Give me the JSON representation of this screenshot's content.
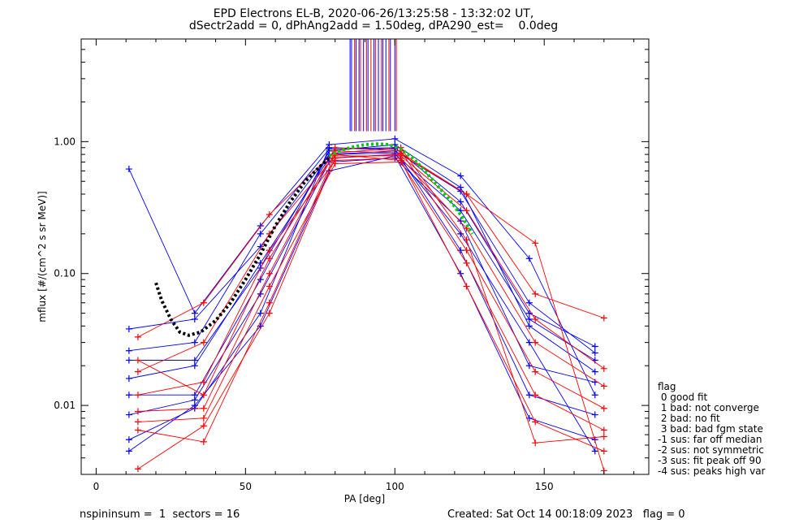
{
  "chart_data": {
    "type": "line",
    "title": "EPD Electrons EL-B, 2020-06-26/13:25:58 - 13:32:02 UT,",
    "subtitle": "dSectr2add = 0, dPhAng2add = 1.50deg, dPA290_est=    0.0deg",
    "xlabel": "PA [deg]",
    "ylabel": "mflux [#/(cm^2 s sr MeV)]",
    "xlim": [
      -5,
      185
    ],
    "ylim": [
      0.003,
      6
    ],
    "yscale": "log",
    "x_ticks": [
      0,
      50,
      100,
      150
    ],
    "x_tick_labels": [
      "0",
      "50",
      "100",
      "150"
    ],
    "y_ticks": [
      0.01,
      0.1,
      1.0
    ],
    "y_tick_labels": [
      "0.01",
      "0.10",
      "1.00"
    ],
    "series_colors": [
      "#0000ff",
      "#ff0000"
    ],
    "marker": "plus",
    "series": [
      {
        "color": "#0000ff",
        "x": [
          11,
          33,
          55,
          78,
          100,
          122,
          145,
          167
        ],
        "y": [
          0.038,
          0.045,
          0.16,
          0.8,
          0.85,
          0.42,
          0.06,
          0.025
        ]
      },
      {
        "color": "#0000ff",
        "x": [
          11,
          33,
          55,
          78,
          100,
          122,
          145,
          167
        ],
        "y": [
          0.026,
          0.03,
          0.2,
          0.88,
          0.9,
          0.35,
          0.05,
          0.028
        ]
      },
      {
        "color": "#0000ff",
        "x": [
          11,
          33,
          55,
          78,
          100,
          122,
          145,
          167
        ],
        "y": [
          0.016,
          0.02,
          0.12,
          0.75,
          0.8,
          0.3,
          0.045,
          0.022
        ]
      },
      {
        "color": "#0000ff",
        "x": [
          11,
          33,
          55,
          78,
          100,
          122,
          145,
          167
        ],
        "y": [
          0.012,
          0.012,
          0.09,
          0.85,
          0.95,
          0.45,
          0.04,
          0.018
        ]
      },
      {
        "color": "#0000ff",
        "x": [
          11,
          33,
          55,
          78,
          100,
          122,
          145,
          167
        ],
        "y": [
          0.0085,
          0.011,
          0.07,
          0.7,
          0.75,
          0.25,
          0.02,
          0.015
        ]
      },
      {
        "color": "#0000ff",
        "x": [
          11,
          33,
          55,
          78,
          100,
          122,
          145,
          167
        ],
        "y": [
          0.0055,
          0.0095,
          0.05,
          0.9,
          0.88,
          0.15,
          0.012,
          0.0085
        ]
      },
      {
        "color": "#0000ff",
        "x": [
          11,
          33,
          55,
          78,
          100,
          122,
          145,
          167
        ],
        "y": [
          0.0045,
          0.01,
          0.04,
          0.6,
          0.78,
          0.1,
          0.008,
          0.0055
        ]
      },
      {
        "color": "#0000ff",
        "x": [
          11,
          33,
          55,
          78,
          100,
          122,
          145,
          167
        ],
        "y": [
          0.62,
          0.05,
          0.23,
          0.95,
          1.05,
          0.55,
          0.13,
          0.012
        ]
      },
      {
        "color": "#0000ff",
        "x": [
          11,
          33,
          55,
          78,
          100,
          122,
          145,
          167
        ],
        "y": [
          0.022,
          0.022,
          0.11,
          0.8,
          0.82,
          0.2,
          0.03,
          0.0045
        ]
      },
      {
        "color": "#ff0000",
        "x": [
          14,
          36,
          58,
          80,
          102,
          124,
          147,
          170
        ],
        "y": [
          0.033,
          0.06,
          0.28,
          0.85,
          0.82,
          0.4,
          0.07,
          0.046
        ]
      },
      {
        "color": "#ff0000",
        "x": [
          14,
          36,
          58,
          80,
          102,
          124,
          147,
          170
        ],
        "y": [
          0.018,
          0.03,
          0.2,
          0.78,
          0.78,
          0.3,
          0.045,
          0.019
        ]
      },
      {
        "color": "#ff0000",
        "x": [
          14,
          36,
          58,
          80,
          102,
          124,
          147,
          170
        ],
        "y": [
          0.012,
          0.015,
          0.15,
          0.72,
          0.75,
          0.22,
          0.03,
          0.014
        ]
      },
      {
        "color": "#ff0000",
        "x": [
          14,
          36,
          58,
          80,
          102,
          124,
          147,
          170
        ],
        "y": [
          0.009,
          0.0095,
          0.1,
          0.9,
          0.85,
          0.15,
          0.018,
          0.0095
        ]
      },
      {
        "color": "#ff0000",
        "x": [
          14,
          36,
          58,
          80,
          102,
          124,
          147,
          170
        ],
        "y": [
          0.0075,
          0.008,
          0.08,
          0.68,
          0.7,
          0.12,
          0.012,
          0.0065
        ]
      },
      {
        "color": "#ff0000",
        "x": [
          14,
          36,
          58,
          80,
          102,
          124,
          147,
          170
        ],
        "y": [
          0.0065,
          0.0053,
          0.06,
          0.8,
          0.72,
          0.08,
          0.0075,
          0.0045
        ]
      },
      {
        "color": "#ff0000",
        "x": [
          14,
          36,
          58,
          80,
          102,
          124,
          147,
          170
        ],
        "y": [
          0.0033,
          0.007,
          0.05,
          0.75,
          0.8,
          0.4,
          0.17,
          0.0032
        ]
      },
      {
        "color": "#ff0000",
        "x": [
          14,
          36,
          58,
          80,
          102,
          124,
          147,
          170
        ],
        "y": [
          0.022,
          0.012,
          0.13,
          0.82,
          0.9,
          0.18,
          0.0052,
          0.0058
        ]
      }
    ],
    "fit_curves": [
      {
        "color": "#000000",
        "style": "dotted-thick",
        "x": [
          20,
          22,
          25,
          28,
          31,
          35,
          40,
          45,
          50,
          55,
          60,
          65,
          70,
          75,
          78
        ],
        "y": [
          0.085,
          0.062,
          0.045,
          0.036,
          0.034,
          0.036,
          0.044,
          0.06,
          0.09,
          0.14,
          0.23,
          0.35,
          0.5,
          0.65,
          0.75
        ]
      },
      {
        "color": "#00cc00",
        "style": "dotted-thick",
        "x": [
          78,
          82,
          86,
          90,
          94,
          98,
          102,
          106,
          110,
          114,
          118,
          122,
          126
        ],
        "y": [
          0.78,
          0.86,
          0.91,
          0.95,
          0.96,
          0.95,
          0.88,
          0.75,
          0.6,
          0.47,
          0.37,
          0.28,
          0.2
        ]
      }
    ],
    "vertical_marks": {
      "ymin": 1.2,
      "x": [
        85,
        85.5,
        86.5,
        87,
        88,
        88.5,
        89.5,
        90.5,
        91,
        92,
        93,
        93.5,
        94.5,
        95.5,
        96,
        97,
        98,
        98.5,
        100,
        100.5
      ],
      "colors": [
        "#0000ff",
        "#0000ff",
        "#ff0000",
        "#0000ff",
        "#0000ff",
        "#ff0000",
        "#0000ff",
        "#ff0000",
        "#0000ff",
        "#ff0000",
        "#0000ff",
        "#ff0000",
        "#0000ff",
        "#ff0000",
        "#0000ff",
        "#0000ff",
        "#ff0000",
        "#0000ff",
        "#0000ff",
        "#ff0000"
      ]
    }
  },
  "legend": {
    "title": "flag",
    "items": [
      " 0 good fit",
      " 1 bad: not converge",
      " 2 bad: no fit",
      " 3 bad: bad fgm state",
      "-1 sus: far off median",
      "-2 sus: not symmetric",
      "-3 sus: fit peak off 90",
      "-4 sus: peaks high var"
    ]
  },
  "footer": {
    "left": "nspininsum =  1  sectors = 16",
    "right": "Created: Sat Oct 14 00:18:09 2023   flag = 0"
  }
}
